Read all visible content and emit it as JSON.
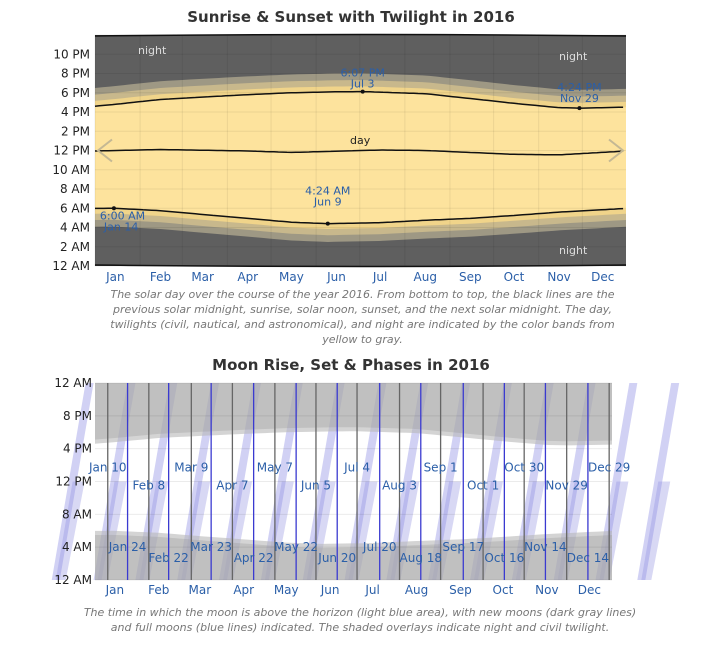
{
  "chart_data": [
    {
      "type": "area",
      "title": "Sunrise & Sunset with Twilight in 2016",
      "caption": "The solar day over the course of the year 2016. From bottom to top, the black lines are the previous solar midnight, sunrise, solar noon, sunset, and the next solar midnight. The day, twilights (civil, nautical, and astronomical), and night are indicated by the color bands from yellow to gray.",
      "x_ticks": [
        "Jan",
        "Feb",
        "Mar",
        "Apr",
        "May",
        "Jun",
        "Jul",
        "Aug",
        "Sep",
        "Oct",
        "Nov",
        "Dec"
      ],
      "y_ticks": [
        "12 AM",
        "2 AM",
        "4 AM",
        "6 AM",
        "8 AM",
        "10 AM",
        "12 PM",
        "2 PM",
        "4 PM",
        "6 PM",
        "8 PM",
        "10 PM"
      ],
      "ylim_hours": [
        0,
        24
      ],
      "band_labels": {
        "night": "night",
        "day": "day"
      },
      "series": [
        {
          "name": "sunrise",
          "x": [
            "Jan 1",
            "Jan 14",
            "Feb 15",
            "Mar 15",
            "Apr 15",
            "May 15",
            "Jun 9",
            "Jul 15",
            "Aug 15",
            "Sep 15",
            "Oct 15",
            "Nov 15",
            "Dec 31"
          ],
          "values": [
            5.98,
            6.0,
            5.75,
            5.35,
            4.95,
            4.55,
            4.4,
            4.5,
            4.75,
            4.95,
            5.25,
            5.6,
            5.98
          ]
        },
        {
          "name": "sunset",
          "x": [
            "Jan 1",
            "Jan 15",
            "Feb 15",
            "Mar 15",
            "Apr 15",
            "May 15",
            "Jun 15",
            "Jul 3",
            "Aug 15",
            "Sep 15",
            "Oct 15",
            "Nov 15",
            "Nov 29",
            "Dec 31"
          ],
          "values": [
            16.6,
            16.8,
            17.3,
            17.55,
            17.8,
            18.0,
            18.1,
            18.12,
            17.9,
            17.4,
            16.9,
            16.45,
            16.4,
            16.5
          ]
        },
        {
          "name": "solar noon",
          "x": [
            "Jan 1",
            "Feb 15",
            "Apr 15",
            "May 15",
            "Jul 15",
            "Aug 15",
            "Oct 15",
            "Nov 15",
            "Dec 31"
          ],
          "values": [
            11.95,
            12.1,
            11.95,
            11.8,
            12.05,
            12.0,
            11.6,
            11.55,
            11.95
          ]
        },
        {
          "name": "previous solar midnight",
          "x": [
            "Jan 1",
            "Dec 31"
          ],
          "values": [
            0.0,
            0.0
          ]
        },
        {
          "name": "next solar midnight",
          "x": [
            "Jan 1",
            "Dec 31"
          ],
          "values": [
            24.0,
            24.0
          ]
        }
      ],
      "annotations": [
        {
          "date": "Jan 14",
          "time": "6:00 AM",
          "hour": 6.0
        },
        {
          "date": "Jun 9",
          "time": "4:24 AM",
          "hour": 4.4
        },
        {
          "date": "Jul 3",
          "time": "6:07 PM",
          "hour": 18.12
        },
        {
          "date": "Nov 29",
          "time": "4:24 PM",
          "hour": 16.4
        }
      ],
      "colors": {
        "day": "#fde39d",
        "civil": "#f0d48a",
        "nautical": "#c8b88c",
        "astronomical": "#9e9884",
        "night": "#5f5f5f",
        "line": "#111111",
        "label": "#2b5fa8"
      }
    },
    {
      "type": "area",
      "title": "Moon Rise, Set & Phases in 2016",
      "caption": "The time in which the moon is above the horizon (light blue area), with new moons (dark gray lines) and full moons (blue lines) indicated. The shaded overlays indicate night and civil twilight.",
      "x_ticks": [
        "Jan",
        "Feb",
        "Mar",
        "Apr",
        "May",
        "Jun",
        "Jul",
        "Aug",
        "Sep",
        "Oct",
        "Nov",
        "Dec"
      ],
      "y_ticks": [
        "12 AM",
        "4 AM",
        "8 AM",
        "12 PM",
        "4 PM",
        "8 PM",
        "12 AM"
      ],
      "ylim_hours": [
        0,
        24
      ],
      "new_moons": [
        "Jan 10",
        "Feb 8",
        "Mar 9",
        "Apr 7",
        "May 7",
        "Jun 5",
        "Jul 4",
        "Aug 3",
        "Sep 1",
        "Oct 1",
        "Oct 30",
        "Nov 29",
        "Dec 29"
      ],
      "full_moons": [
        "Jan 24",
        "Feb 22",
        "Mar 23",
        "Apr 22",
        "May 22",
        "Jun 20",
        "Jul 20",
        "Aug 18",
        "Sep 17",
        "Oct 16",
        "Nov 14",
        "Dec 14"
      ],
      "colors": {
        "moon_up": "#c9c9f2",
        "moon_up_dark": "#8f8fe0",
        "night_overlay": "#b8b8b8",
        "new_moon": "#666666",
        "full_moon": "#3a3ad0",
        "label": "#2b5fa8"
      }
    }
  ]
}
